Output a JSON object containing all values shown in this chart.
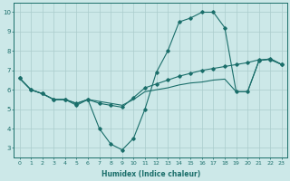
{
  "xlabel": "Humidex (Indice chaleur)",
  "bg_color": "#cce8e8",
  "grid_color": "#aacccc",
  "line_color": "#1a6e6a",
  "xlim": [
    -0.5,
    23.5
  ],
  "ylim": [
    2.5,
    10.5
  ],
  "xticks": [
    0,
    1,
    2,
    3,
    4,
    5,
    6,
    7,
    8,
    9,
    10,
    11,
    12,
    13,
    14,
    15,
    16,
    17,
    18,
    19,
    20,
    21,
    22,
    23
  ],
  "yticks": [
    3,
    4,
    5,
    6,
    7,
    8,
    9,
    10
  ],
  "line1_x": [
    0,
    1,
    2,
    3,
    4,
    5,
    6,
    7,
    8,
    9,
    10,
    11,
    12,
    13,
    14,
    15,
    16,
    17,
    18,
    19,
    20,
    21,
    22,
    23
  ],
  "line1_y": [
    6.6,
    6.0,
    5.8,
    5.5,
    5.5,
    5.2,
    5.5,
    4.0,
    3.2,
    2.9,
    3.5,
    5.0,
    6.9,
    8.0,
    9.5,
    9.7,
    10.0,
    10.0,
    9.2,
    5.9,
    5.9,
    7.5,
    7.6,
    7.3
  ],
  "line2_x": [
    0,
    1,
    2,
    3,
    4,
    5,
    6,
    7,
    8,
    9,
    10,
    11,
    12,
    13,
    14,
    15,
    16,
    17,
    18,
    19,
    20,
    21,
    22,
    23
  ],
  "line2_y": [
    6.6,
    6.0,
    5.8,
    5.5,
    5.5,
    5.3,
    5.5,
    5.3,
    5.2,
    5.1,
    5.6,
    6.1,
    6.3,
    6.5,
    6.7,
    6.85,
    7.0,
    7.1,
    7.2,
    7.3,
    7.4,
    7.55,
    7.55,
    7.3
  ],
  "line3_x": [
    0,
    1,
    2,
    3,
    4,
    5,
    6,
    7,
    8,
    9,
    10,
    11,
    12,
    13,
    14,
    15,
    16,
    17,
    18,
    19,
    20,
    21,
    22,
    23
  ],
  "line3_y": [
    6.6,
    6.0,
    5.8,
    5.5,
    5.5,
    5.3,
    5.5,
    5.4,
    5.3,
    5.2,
    5.5,
    5.9,
    6.0,
    6.1,
    6.25,
    6.35,
    6.4,
    6.5,
    6.55,
    5.9,
    5.9,
    7.5,
    7.6,
    7.3
  ]
}
